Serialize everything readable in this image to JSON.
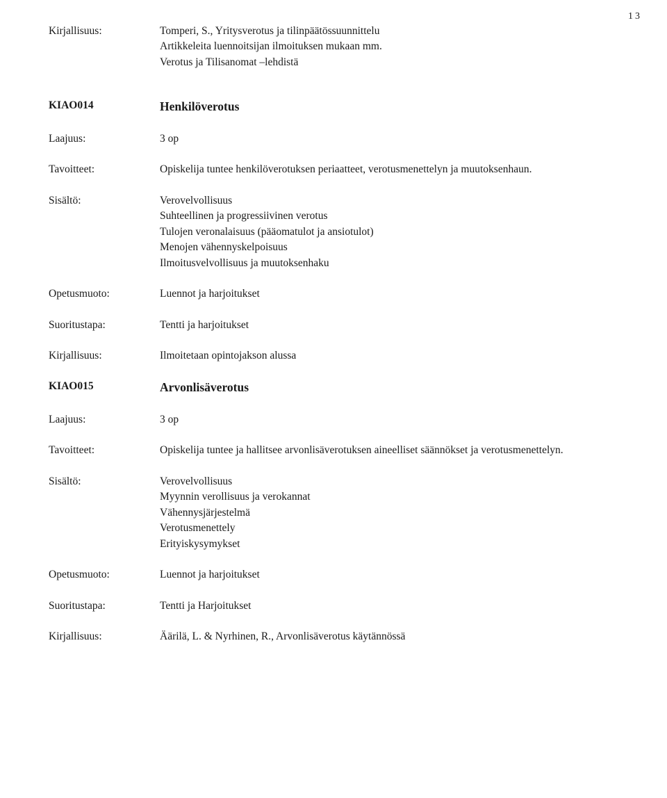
{
  "page_number": "13",
  "top": {
    "label": "Kirjallisuus:",
    "lines": [
      "Tomperi, S., Yritysverotus ja tilinpäätössuunnittelu",
      "Artikkeleita luennoitsijan ilmoituksen mukaan mm.",
      "Verotus ja Tilisanomat –lehdistä"
    ]
  },
  "course1": {
    "code": "KIAO014",
    "title": "Henkilöverotus",
    "rows": [
      {
        "label": "Laajuus:",
        "lines": [
          "3 op"
        ]
      },
      {
        "label": "Tavoitteet:",
        "lines": [
          "Opiskelija tuntee henkilöverotuksen periaatteet, verotusmenettelyn ja muutoksenhaun."
        ]
      },
      {
        "label": "Sisältö:",
        "lines": [
          "Verovelvollisuus",
          "Suhteellinen ja progressiivinen verotus",
          "Tulojen veronalaisuus (pääomatulot ja ansiotulot)",
          "Menojen vähennyskelpoisuus",
          "Ilmoitusvelvollisuus ja muutoksenhaku"
        ]
      },
      {
        "label": "Opetusmuoto:",
        "lines": [
          "Luennot ja harjoitukset"
        ]
      },
      {
        "label": "Suoritustapa:",
        "lines": [
          "Tentti ja harjoitukset"
        ]
      },
      {
        "label": "Kirjallisuus:",
        "lines": [
          "Ilmoitetaan opintojakson alussa"
        ]
      }
    ]
  },
  "course2": {
    "code": "KIAO015",
    "title": "Arvonlisäverotus",
    "rows": [
      {
        "label": "Laajuus:",
        "lines": [
          "3 op"
        ]
      },
      {
        "label": "Tavoitteet:",
        "lines": [
          "Opiskelija tuntee ja hallitsee arvonlisäverotuksen aineelliset säännökset ja verotusmenettelyn."
        ]
      },
      {
        "label": "Sisältö:",
        "lines": [
          "Verovelvollisuus",
          "Myynnin verollisuus ja verokannat",
          "Vähennysjärjestelmä",
          "Verotusmenettely",
          "Erityiskysymykset"
        ]
      },
      {
        "label": "Opetusmuoto:",
        "lines": [
          "Luennot ja harjoitukset"
        ]
      },
      {
        "label": "Suoritustapa:",
        "lines": [
          "Tentti ja Harjoitukset"
        ]
      },
      {
        "label": "Kirjallisuus:",
        "lines": [
          "Äärilä, L. & Nyrhinen, R., Arvonlisäverotus käytännössä"
        ]
      }
    ]
  }
}
